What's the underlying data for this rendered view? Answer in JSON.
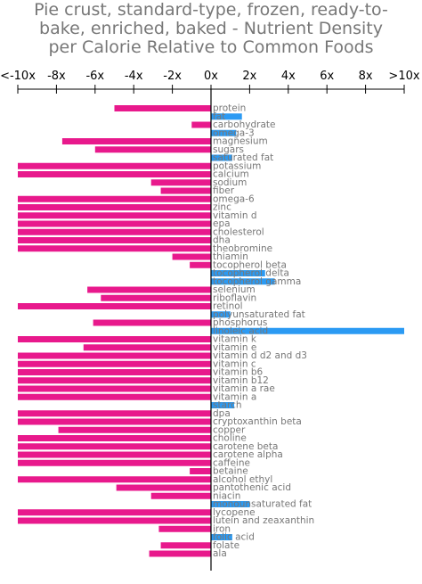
{
  "chart_data": {
    "type": "bar",
    "orientation": "horizontal",
    "title_lines": [
      "Pie crust, standard-type, frozen, ready-to-",
      "bake, enriched, baked - Nutrient Density",
      "per Calorie Relative to Common Foods"
    ],
    "x_ticks": [
      "<-10x",
      "-8x",
      "-6x",
      "-4x",
      "-2x",
      "0x",
      "2x",
      "4x",
      "6x",
      "8x",
      ">10x"
    ],
    "xlim": [
      -10,
      10
    ],
    "grid": false,
    "colors": {
      "negative": "#e8198c",
      "positive": "#2b9af3",
      "label": "#777777",
      "axis": "#000000"
    },
    "categories": [
      "protein",
      "fat",
      "carbohydrate",
      "omega-3",
      "magnesium",
      "sugars",
      "saturated fat",
      "potassium",
      "calcium",
      "sodium",
      "fiber",
      "omega-6",
      "zinc",
      "vitamin d",
      "epa",
      "cholesterol",
      "dha",
      "theobromine",
      "thiamin",
      "tocopherol beta",
      "tocopherol delta",
      "tocopherol gamma",
      "selenium",
      "riboflavin",
      "retinol",
      "polyunsaturated fat",
      "phosphorus",
      "linoleic acid",
      "vitamin k",
      "vitamin e",
      "vitamin d d2 and d3",
      "vitamin c",
      "vitamin b6",
      "vitamin b12",
      "vitamin a rae",
      "vitamin a",
      "starch",
      "dpa",
      "cryptoxanthin beta",
      "copper",
      "choline",
      "carotene beta",
      "carotene alpha",
      "caffeine",
      "betaine",
      "alcohol ethyl",
      "pantothenic acid",
      "niacin",
      "monounsaturated fat",
      "lycopene",
      "lutein and zeaxanthin",
      "iron",
      "folic acid",
      "folate",
      "ala"
    ],
    "values": [
      -5.0,
      1.6,
      -1.0,
      1.3,
      -7.7,
      -6.0,
      1.1,
      -10,
      -10,
      -3.1,
      -2.6,
      -10,
      -10,
      -10,
      -10,
      -10,
      -10,
      -10,
      -2.0,
      -1.1,
      2.8,
      3.3,
      -6.4,
      -5.7,
      -10,
      1.0,
      -6.1,
      10,
      -10,
      -6.6,
      -10,
      -10,
      -10,
      -10,
      -10,
      -10,
      1.2,
      -10,
      -10,
      -7.9,
      -10,
      -10,
      -10,
      -10,
      -1.1,
      -10,
      -4.9,
      -3.1,
      2.0,
      -10,
      -10,
      -2.7,
      1.1,
      -2.6,
      -3.2
    ]
  }
}
